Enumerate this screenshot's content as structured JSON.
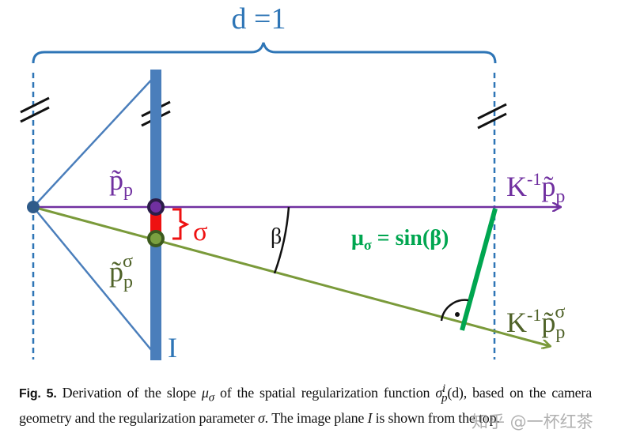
{
  "figure": {
    "width_label": "d =1",
    "labels": {
      "p_tilde": "p̃",
      "p_sub": "p",
      "sigma_sup": "σ",
      "sigma": "σ",
      "beta": "β",
      "mu": "μ",
      "mu_sub": "σ",
      "mu_eq": " = sin(β)",
      "image_plane": "I",
      "k_inv": "K",
      "k_inv_sup": "-1"
    },
    "colors": {
      "blue": "#2e75b6",
      "plane": "#4a7ebb",
      "purple": "#7030a0",
      "olive": "#5a7a2a",
      "red": "#ee1111",
      "green": "#00a650"
    }
  },
  "caption": {
    "fig_label": "Fig. 5.",
    "text1": " Derivation of the slope ",
    "mu": "μ",
    "mu_sub": "σ",
    "text2": " of the spatial regularization function ",
    "sigma": "σ",
    "sigma_sup": "i",
    "sigma_sub": "p",
    "text3": "(d),",
    "text4": " based on the camera geometry and the regularization parameter ",
    "sigma2": "σ",
    "text5": ". The image plane ",
    "plane": "I",
    "text6": " is shown from the top."
  },
  "watermark": "知乎 @一杯红茶"
}
